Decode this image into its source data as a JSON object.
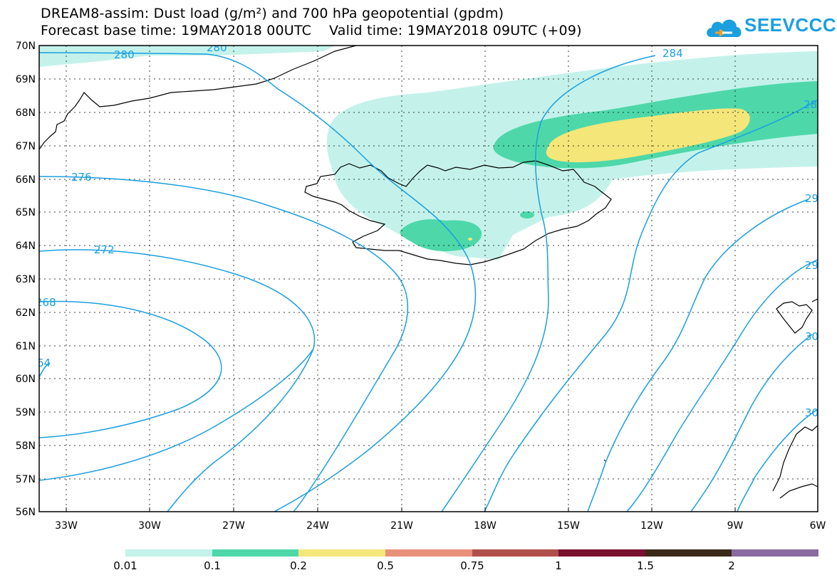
{
  "header": {
    "title_line1": "DREAM8-assim: Dust load (g/m²) and 700 hPa geopotential (gpdm)",
    "title_line2": "Forecast base time: 19MAY2018 00UTC    Valid time: 19MAY2018 09UTC (+09)"
  },
  "logo": {
    "text": "SEEVCCC",
    "icon": "cloud-icon"
  },
  "map": {
    "lat_labels": [
      "70N",
      "69N",
      "68N",
      "67N",
      "66N",
      "65N",
      "64N",
      "63N",
      "62N",
      "61N",
      "60N",
      "59N",
      "58N",
      "57N",
      "56N"
    ],
    "lon_labels": [
      "33W",
      "30W",
      "27W",
      "24W",
      "21W",
      "18W",
      "15W",
      "12W",
      "9W",
      "6W"
    ],
    "contour_labels": [
      "280",
      "280",
      "284",
      "28",
      "276",
      "272",
      "268",
      "64",
      "29",
      "29",
      "30",
      "30"
    ],
    "contour_color": "#1a9fe0",
    "coast_color": "#000000"
  },
  "colorbar": {
    "labels": [
      "0.01",
      "0.1",
      "0.2",
      "0.5",
      "0.75",
      "1",
      "1.5",
      "2"
    ],
    "colors": [
      "#c4f2ea",
      "#4ed8aa",
      "#f5e67a",
      "#e8907a",
      "#b0504a",
      "#7a1030",
      "#3a2818",
      "#8a6aa0"
    ]
  }
}
